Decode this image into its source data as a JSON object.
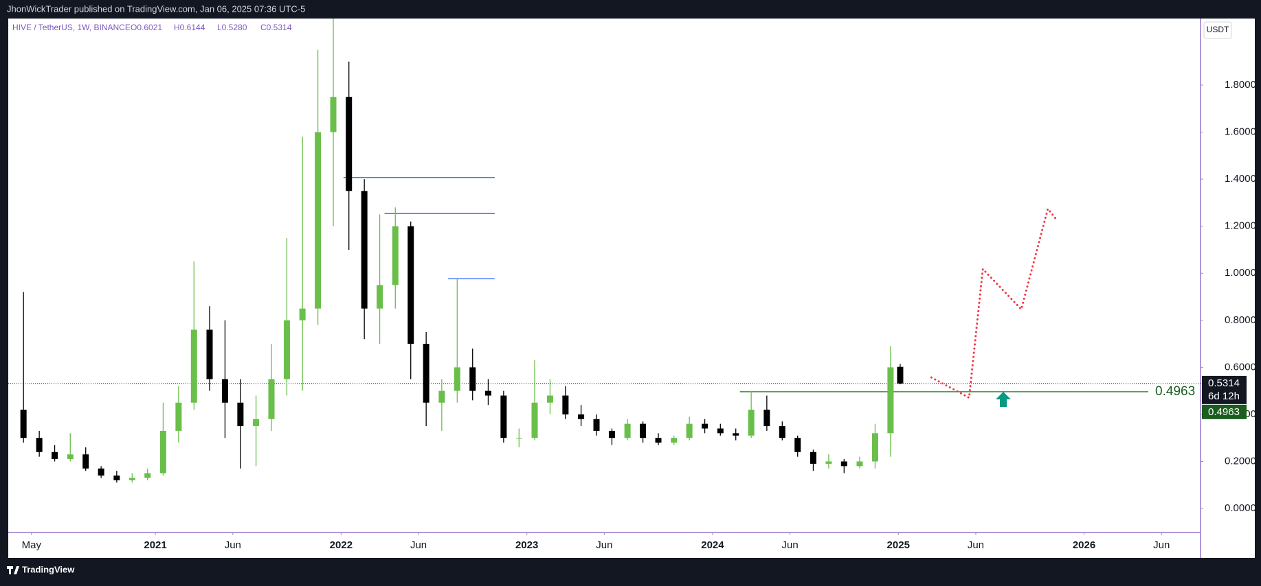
{
  "header": {
    "text": "JhonWickTrader published on TradingView.com, Jan 06, 2025 07:36 UTC-5"
  },
  "footer": {
    "brand": "TradingView"
  },
  "chart_data": {
    "type": "candlestick",
    "title": "HIVE / TetherUS, 1W, BINANCE",
    "ohlc_legend": [
      "O0.6021",
      "H0.6144",
      "L0.5280",
      "C0.5314"
    ],
    "currency": "USDT",
    "up_color": "#6abf4b",
    "down_color": "#000000",
    "xlim": [
      2020.208,
      2026.627
    ],
    "xticks": [
      {
        "value": 2020.333,
        "label": "May"
      },
      {
        "value": 2021,
        "label": "2021"
      },
      {
        "value": 2021.417,
        "label": "Jun"
      },
      {
        "value": 2022,
        "label": "2022"
      },
      {
        "value": 2022.417,
        "label": "Jun"
      },
      {
        "value": 2023,
        "label": "2023"
      },
      {
        "value": 2023.417,
        "label": "Jun"
      },
      {
        "value": 2024,
        "label": "2024"
      },
      {
        "value": 2024.417,
        "label": "Jun"
      },
      {
        "value": 2025,
        "label": "2025"
      },
      {
        "value": 2025.417,
        "label": "Jun"
      },
      {
        "value": 2026,
        "label": "2026"
      },
      {
        "value": 2026.417,
        "label": "Jun"
      }
    ],
    "ylim": [
      -0.102,
      2.083
    ],
    "yticks": [
      {
        "value": 0,
        "label": "0.0000"
      },
      {
        "value": 0.2,
        "label": "0.2000"
      },
      {
        "value": 0.4,
        "label": "0.4000"
      },
      {
        "value": 0.6,
        "label": "0.6000"
      },
      {
        "value": 0.8,
        "label": "0.8000"
      },
      {
        "value": 1.0,
        "label": "1.0000"
      },
      {
        "value": 1.2,
        "label": "1.2000"
      },
      {
        "value": 1.4,
        "label": "1.4000"
      },
      {
        "value": 1.6,
        "label": "1.6000"
      },
      {
        "value": 1.8,
        "label": "1.8000"
      }
    ],
    "candles": {
      "x": [
        2020.29,
        2020.375,
        2020.458,
        2020.542,
        2020.625,
        2020.708,
        2020.792,
        2020.875,
        2020.958,
        2021.042,
        2021.125,
        2021.208,
        2021.292,
        2021.375,
        2021.458,
        2021.542,
        2021.625,
        2021.708,
        2021.792,
        2021.875,
        2021.958,
        2022.042,
        2022.125,
        2022.208,
        2022.292,
        2022.375,
        2022.458,
        2022.542,
        2022.625,
        2022.708,
        2022.792,
        2022.875,
        2022.958,
        2023.042,
        2023.125,
        2023.208,
        2023.292,
        2023.375,
        2023.458,
        2023.542,
        2023.625,
        2023.708,
        2023.792,
        2023.875,
        2023.958,
        2024.042,
        2024.125,
        2024.208,
        2024.292,
        2024.375,
        2024.458,
        2024.542,
        2024.625,
        2024.708,
        2024.792,
        2024.875,
        2024.958,
        2025.01
      ],
      "open": [
        0.42,
        0.3,
        0.24,
        0.21,
        0.23,
        0.17,
        0.14,
        0.12,
        0.13,
        0.15,
        0.33,
        0.45,
        0.76,
        0.55,
        0.45,
        0.35,
        0.38,
        0.55,
        0.8,
        0.85,
        1.6,
        1.75,
        1.35,
        0.85,
        0.95,
        1.2,
        0.7,
        0.45,
        0.5,
        0.6,
        0.5,
        0.48,
        0.3,
        0.3,
        0.45,
        0.48,
        0.4,
        0.38,
        0.33,
        0.3,
        0.36,
        0.3,
        0.28,
        0.3,
        0.36,
        0.34,
        0.32,
        0.31,
        0.42,
        0.35,
        0.3,
        0.24,
        0.19,
        0.2,
        0.18,
        0.2,
        0.32,
        0.6021
      ],
      "high": [
        0.92,
        0.33,
        0.27,
        0.32,
        0.26,
        0.18,
        0.16,
        0.15,
        0.17,
        0.45,
        0.52,
        1.05,
        0.86,
        0.8,
        0.55,
        0.48,
        0.7,
        1.15,
        1.58,
        1.95,
        2.3,
        1.9,
        1.4,
        1.25,
        1.28,
        1.22,
        0.75,
        0.55,
        0.98,
        0.68,
        0.55,
        0.5,
        0.34,
        0.63,
        0.55,
        0.52,
        0.44,
        0.4,
        0.34,
        0.38,
        0.37,
        0.32,
        0.31,
        0.39,
        0.38,
        0.36,
        0.34,
        0.5,
        0.48,
        0.37,
        0.31,
        0.25,
        0.23,
        0.21,
        0.22,
        0.36,
        0.69,
        0.6144
      ],
      "low": [
        0.28,
        0.22,
        0.2,
        0.2,
        0.16,
        0.13,
        0.11,
        0.11,
        0.12,
        0.14,
        0.28,
        0.42,
        0.5,
        0.3,
        0.17,
        0.18,
        0.33,
        0.48,
        0.5,
        0.78,
        1.2,
        1.1,
        0.72,
        0.7,
        0.85,
        0.55,
        0.35,
        0.33,
        0.45,
        0.46,
        0.44,
        0.28,
        0.26,
        0.29,
        0.4,
        0.38,
        0.35,
        0.31,
        0.27,
        0.29,
        0.28,
        0.27,
        0.27,
        0.29,
        0.32,
        0.31,
        0.29,
        0.3,
        0.33,
        0.29,
        0.22,
        0.16,
        0.17,
        0.15,
        0.17,
        0.17,
        0.22,
        0.528
      ],
      "close": [
        0.3,
        0.24,
        0.21,
        0.23,
        0.17,
        0.14,
        0.12,
        0.13,
        0.15,
        0.33,
        0.45,
        0.76,
        0.55,
        0.45,
        0.35,
        0.38,
        0.55,
        0.8,
        0.85,
        1.6,
        1.75,
        1.35,
        0.85,
        0.95,
        1.2,
        0.7,
        0.45,
        0.5,
        0.6,
        0.5,
        0.48,
        0.3,
        0.3,
        0.45,
        0.48,
        0.4,
        0.38,
        0.33,
        0.3,
        0.36,
        0.3,
        0.28,
        0.3,
        0.36,
        0.34,
        0.32,
        0.31,
        0.42,
        0.35,
        0.3,
        0.24,
        0.19,
        0.2,
        0.18,
        0.2,
        0.32,
        0.6,
        0.5314
      ]
    },
    "levels": [
      {
        "value": 1.407,
        "start": 2022.013,
        "end": 2022.827,
        "color": "#2962ff"
      },
      {
        "value": 1.254,
        "start": 2022.234,
        "end": 2022.827,
        "color": "#2962ff"
      },
      {
        "value": 0.977,
        "start": 2022.576,
        "end": 2022.827,
        "color": "#2962ff"
      }
    ],
    "support": {
      "value": 0.4963,
      "label": "0.4963",
      "start": 2024.147,
      "end": 2026.346,
      "color": "#388e3c"
    },
    "last_price": {
      "value": 0.5314,
      "label": "0.5314",
      "countdown": "6d 12h"
    },
    "projection": {
      "color": "#f23645",
      "x": [
        2025.178,
        2025.381,
        2025.455,
        2025.662,
        2025.805,
        2025.857
      ],
      "values": [
        0.557,
        0.471,
        1.018,
        0.847,
        1.274,
        1.223
      ]
    }
  }
}
